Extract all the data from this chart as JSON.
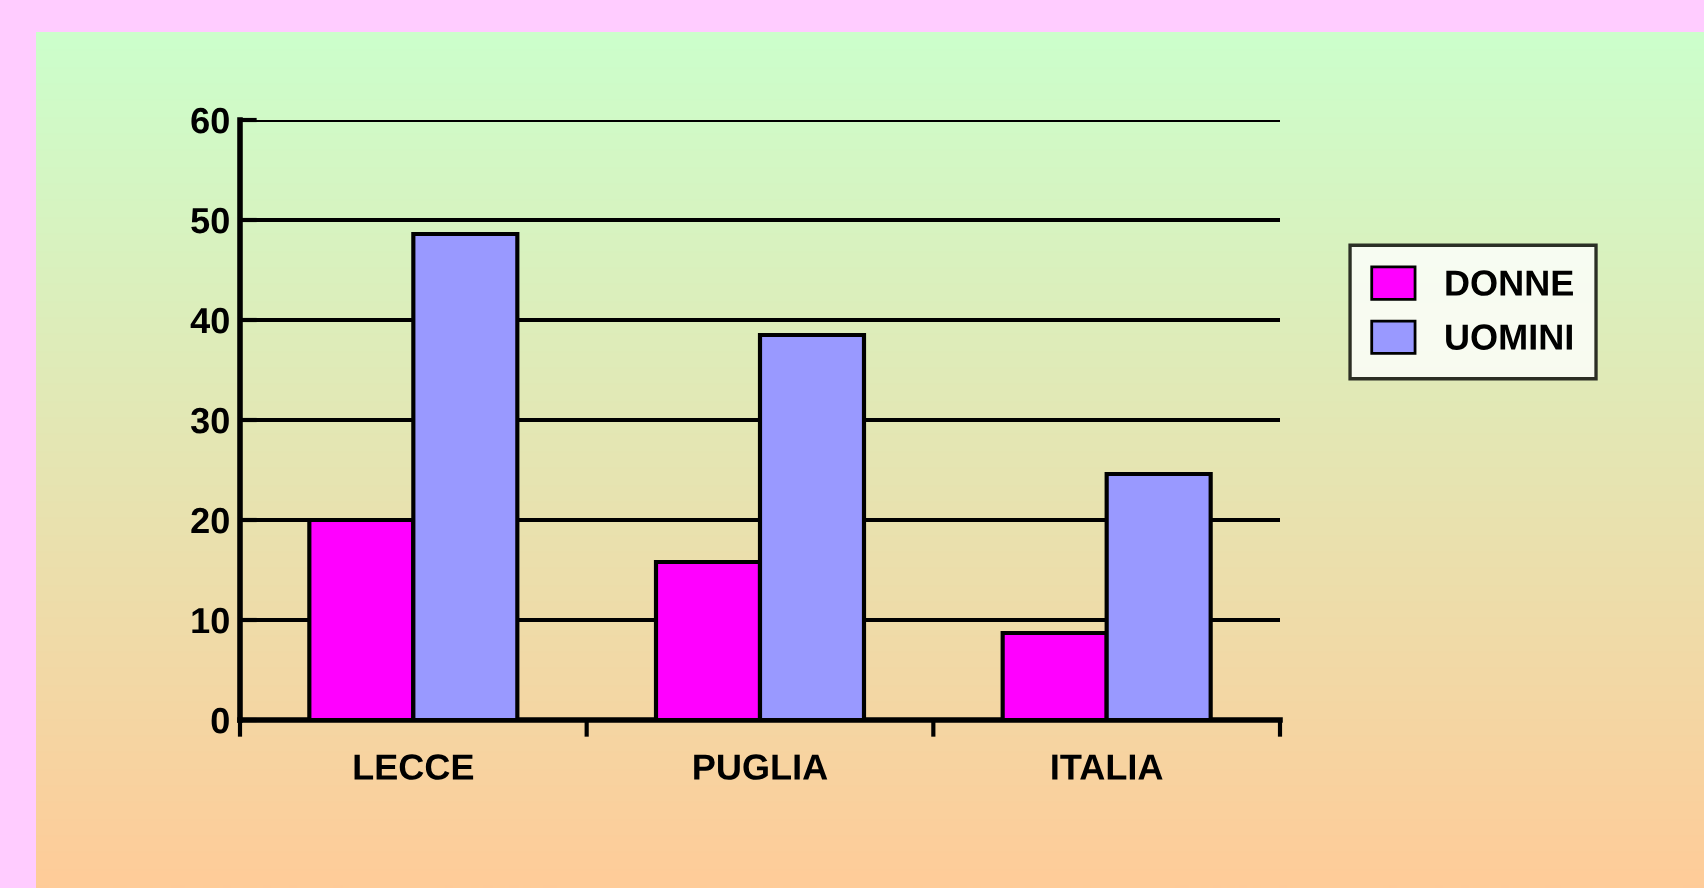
{
  "chart_data": {
    "type": "bar",
    "categories": [
      "LECCE",
      "PUGLIA",
      "ITALIA"
    ],
    "series": [
      {
        "name": "DONNE",
        "color": "#ff00ff",
        "values": [
          20,
          15.8,
          8.7
        ]
      },
      {
        "name": "UOMINI",
        "color": "#9999ff",
        "values": [
          48.6,
          38.5,
          24.6
        ]
      }
    ],
    "ylim": [
      0,
      60
    ],
    "yticks": [
      0,
      10,
      20,
      30,
      40,
      50,
      60
    ],
    "grid": "y",
    "legend": "right"
  }
}
